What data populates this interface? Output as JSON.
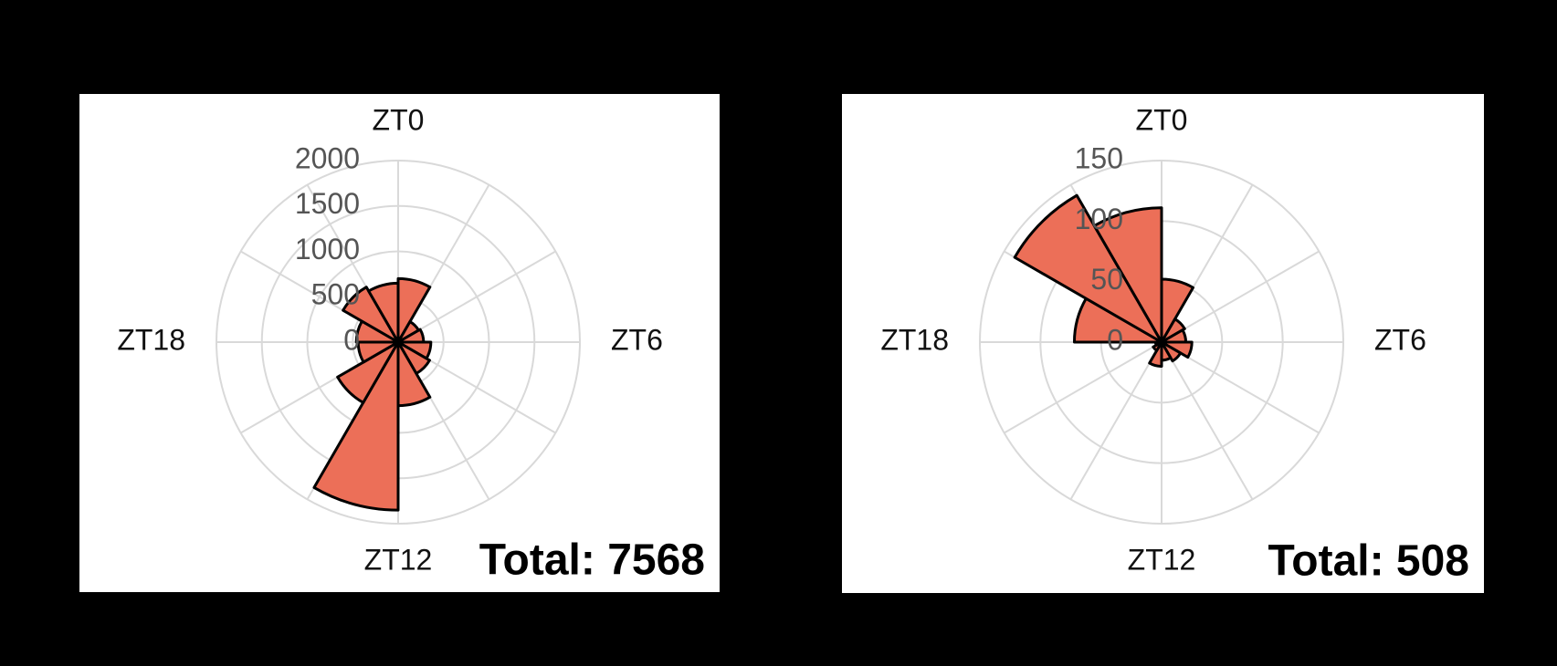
{
  "chart_data": [
    {
      "type": "polar_bar",
      "annotation": "Total: 7568",
      "color": "#ec6f58",
      "categories": [
        "ZT0",
        null,
        null,
        "ZT6",
        null,
        null,
        "ZT12",
        null,
        null,
        "ZT18",
        null,
        null
      ],
      "values": [
        700,
        260,
        280,
        360,
        400,
        700,
        1850,
        770,
        440,
        460,
        700,
        650
      ],
      "ylim": [
        0,
        2000
      ],
      "yticks": [
        0,
        500,
        1000,
        1500,
        2000
      ],
      "grid": true
    },
    {
      "type": "polar_bar",
      "annotation": "Total: 508",
      "color": "#ec6f58",
      "categories": [
        "ZT0",
        null,
        null,
        "ZT6",
        null,
        null,
        "ZT12",
        null,
        null,
        "ZT18",
        null,
        null
      ],
      "values": [
        52,
        22,
        20,
        25,
        18,
        15,
        20,
        8,
        5,
        72,
        140,
        111
      ],
      "ylim": [
        0,
        150
      ],
      "yticks": [
        0,
        50,
        100,
        150
      ],
      "grid": true
    }
  ]
}
